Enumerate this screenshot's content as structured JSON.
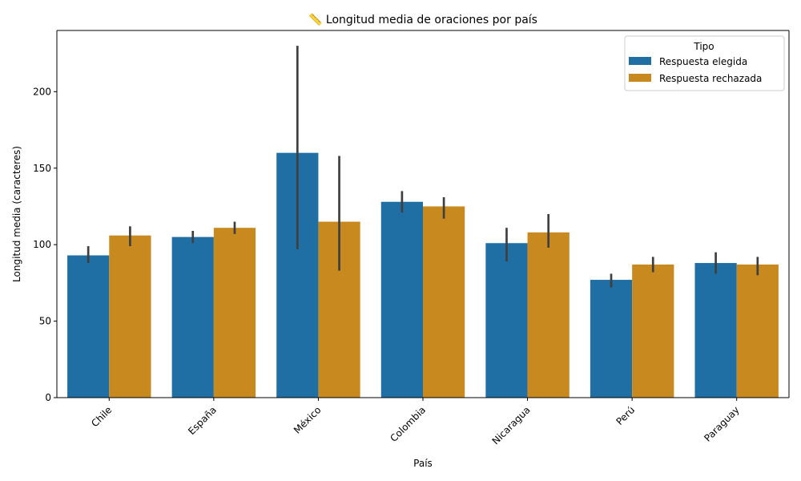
{
  "chart_data": {
    "type": "bar",
    "title": "📏 Longitud media de oraciones por país",
    "xlabel": "País",
    "ylabel": "Longitud media (caracteres)",
    "ylim": [
      0,
      240
    ],
    "yticks": [
      0,
      50,
      100,
      150,
      200
    ],
    "categories": [
      "Chile",
      "España",
      "México",
      "Colombia",
      "Nicaragua",
      "Perú",
      "Paraguay"
    ],
    "series": [
      {
        "name": "Respuesta elegida",
        "color": "#1f6fa5",
        "values": [
          93,
          105,
          160,
          128,
          101,
          77,
          88
        ],
        "error_low": [
          88,
          101,
          97,
          121,
          89,
          72,
          81
        ],
        "error_high": [
          99,
          109,
          230,
          135,
          111,
          81,
          95
        ]
      },
      {
        "name": "Respuesta rechazada",
        "color": "#c88a1f",
        "values": [
          106,
          111,
          115,
          125,
          108,
          87,
          87
        ],
        "error_low": [
          99,
          107,
          83,
          117,
          98,
          82,
          80
        ],
        "error_high": [
          112,
          115,
          158,
          131,
          120,
          92,
          92
        ]
      }
    ],
    "legend": {
      "title": "Tipo",
      "position": "top-right"
    },
    "grid": false
  }
}
